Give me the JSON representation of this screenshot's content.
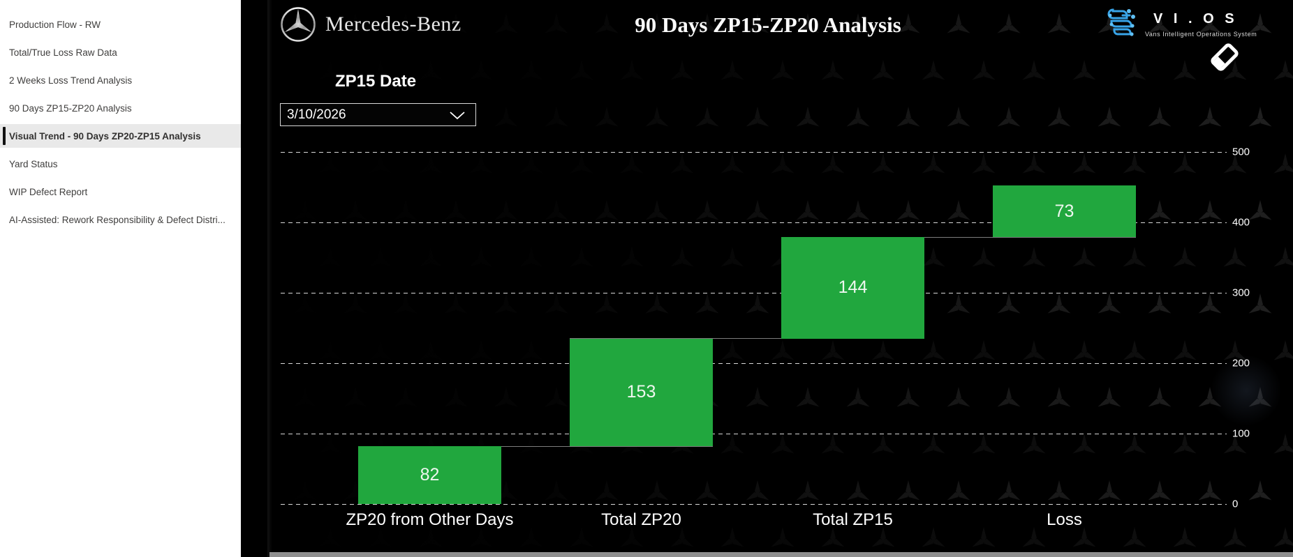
{
  "sidebar": {
    "items": [
      {
        "label": "Production Flow - RW",
        "active": false
      },
      {
        "label": "Total/True Loss Raw Data",
        "active": false
      },
      {
        "label": "2 Weeks Loss Trend Analysis",
        "active": false
      },
      {
        "label": "90 Days ZP15-ZP20 Analysis",
        "active": false
      },
      {
        "label": "Visual Trend - 90 Days ZP20-ZP15 Analysis",
        "active": true
      },
      {
        "label": "Yard Status",
        "active": false
      },
      {
        "label": "WIP Defect Report",
        "active": false
      },
      {
        "label": "AI-Assisted: Rework Responsibility & Defect Distri...",
        "active": false
      }
    ]
  },
  "header": {
    "brand": "Mercedes-Benz",
    "title": "90 Days ZP15-ZP20 Analysis",
    "vios_title": "V I . O S",
    "vios_subtitle": "Vans Intelligent  Operations  System"
  },
  "slicer": {
    "label": "ZP15 Date",
    "value": "3/10/2026"
  },
  "chart_data": {
    "type": "bar",
    "subtype": "waterfall",
    "title": "90 Days ZP15-ZP20 Analysis",
    "categories": [
      "ZP20 from Other Days",
      "Total ZP20",
      "Total ZP15",
      "Loss"
    ],
    "values": [
      82,
      153,
      144,
      73
    ],
    "cumulative_start": [
      0,
      82,
      235,
      379
    ],
    "cumulative_end": [
      82,
      235,
      379,
      452
    ],
    "yticks": [
      0,
      100,
      200,
      300,
      400,
      500
    ],
    "ylim": [
      0,
      500
    ],
    "grid": "horizontal dashed",
    "axis_side": "right",
    "bar_color": "#21a73e",
    "label_color": "#eef7ef"
  },
  "colors": {
    "accent_green": "#21a73e",
    "content_background": "#000000",
    "sidebar_background": "#ffffff",
    "vios_blue": "#38a4e8",
    "gridline": "#d9d9d9"
  }
}
